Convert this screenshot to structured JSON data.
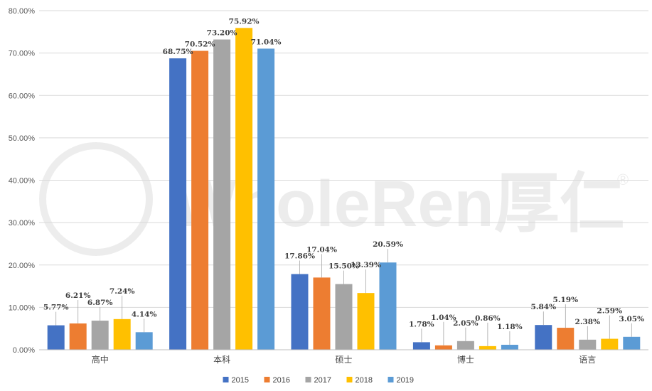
{
  "chart_data": {
    "type": "bar",
    "categories": [
      "高中",
      "本科",
      "硕士",
      "博士",
      "语言"
    ],
    "series": [
      {
        "name": "2015",
        "color": "#4472C4",
        "values": [
          5.77,
          68.75,
          17.86,
          1.78,
          5.84
        ],
        "labels": [
          "5.77%",
          "68.75%",
          "17.86%",
          "1.78%",
          "5.84%"
        ]
      },
      {
        "name": "2016",
        "color": "#ED7D31",
        "values": [
          6.21,
          70.52,
          17.04,
          1.04,
          5.19
        ],
        "labels": [
          "6.21%",
          "70.52%",
          "17.04%",
          "1.04%",
          "5.19%"
        ]
      },
      {
        "name": "2017",
        "color": "#A5A5A5",
        "values": [
          6.87,
          73.2,
          15.5,
          2.05,
          2.38
        ],
        "labels": [
          "6.87%",
          "73.20%",
          "15.50%",
          "2.05%",
          "2.38%"
        ]
      },
      {
        "name": "2018",
        "color": "#FFC000",
        "values": [
          7.24,
          75.92,
          13.39,
          0.86,
          2.59
        ],
        "labels": [
          "7.24%",
          "75.92%",
          "13.39%",
          "0.86%",
          "2.59%"
        ]
      },
      {
        "name": "2019",
        "color": "#5B9BD5",
        "values": [
          4.14,
          71.04,
          20.59,
          1.18,
          3.05
        ],
        "labels": [
          "4.14%",
          "71.04%",
          "20.59%",
          "1.18%",
          "3.05%"
        ]
      }
    ],
    "ylim": [
      0,
      80
    ],
    "yticks": [
      0,
      10,
      20,
      30,
      40,
      50,
      60,
      70,
      80
    ],
    "ytick_labels": [
      "0.00%",
      "10.00%",
      "20.00%",
      "30.00%",
      "40.00%",
      "50.00%",
      "60.00%",
      "70.00%",
      "80.00%"
    ],
    "grid": true,
    "legend_position": "bottom",
    "watermark": "WholeRen厚仁®"
  }
}
